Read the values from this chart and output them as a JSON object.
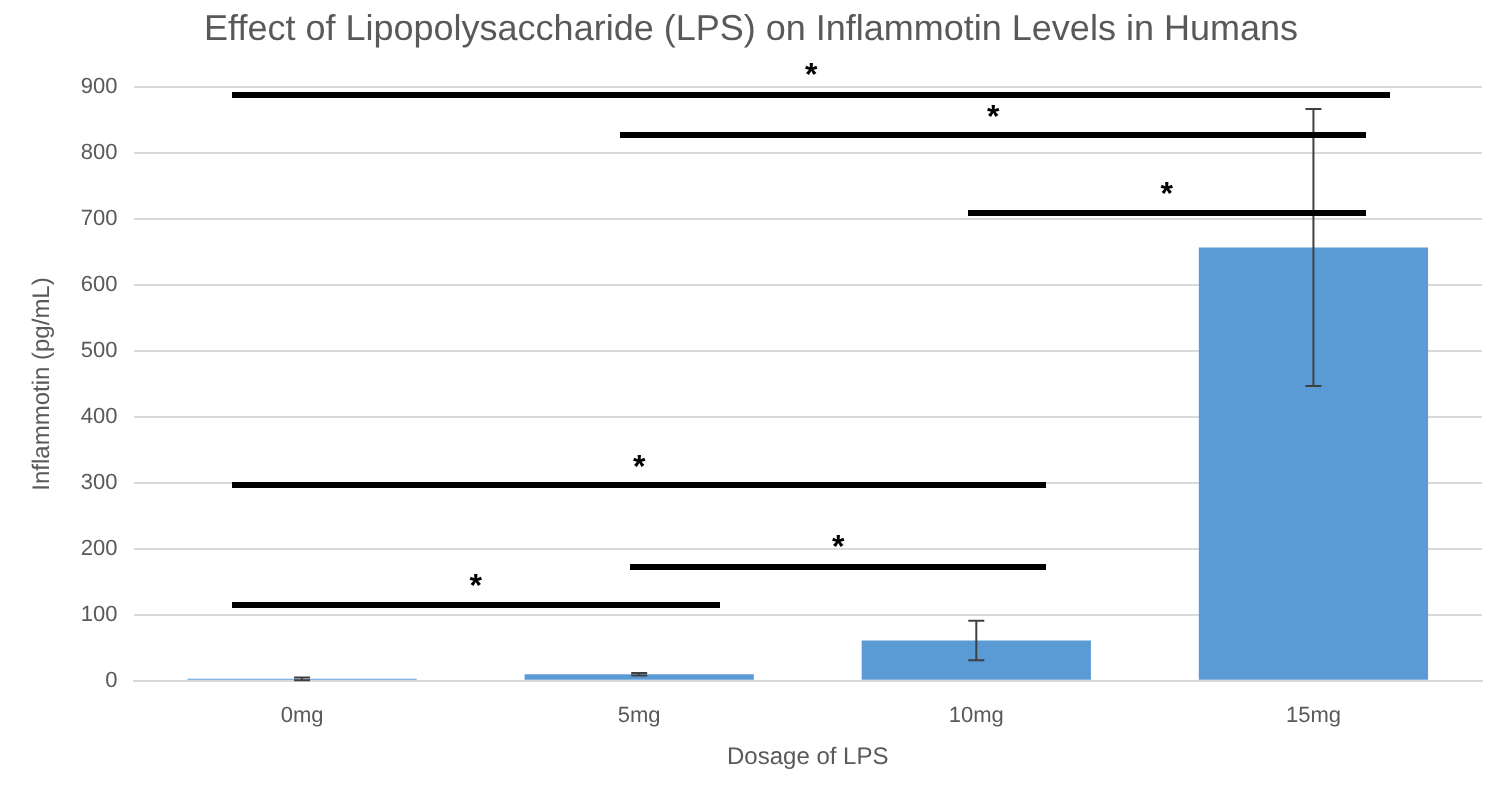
{
  "chart_data": {
    "type": "bar",
    "title": "Effect of Lipopolysaccharide (LPS) on Inflammotin Levels in Humans",
    "xlabel": "Dosage of LPS",
    "ylabel": "Inflammotin (pg/mL)",
    "categories": [
      "0mg",
      "5mg",
      "10mg",
      "15mg"
    ],
    "values": [
      3,
      10,
      61,
      657
    ],
    "errors": [
      2,
      2,
      30,
      210
    ],
    "color": "#5b9bd5",
    "ylim": [
      0,
      900
    ],
    "yticks": [
      0,
      100,
      200,
      300,
      400,
      500,
      600,
      700,
      800,
      900
    ],
    "grid": "y",
    "legend": false,
    "annotations": [
      "*",
      "*",
      "*",
      "*",
      "*",
      "*"
    ]
  }
}
